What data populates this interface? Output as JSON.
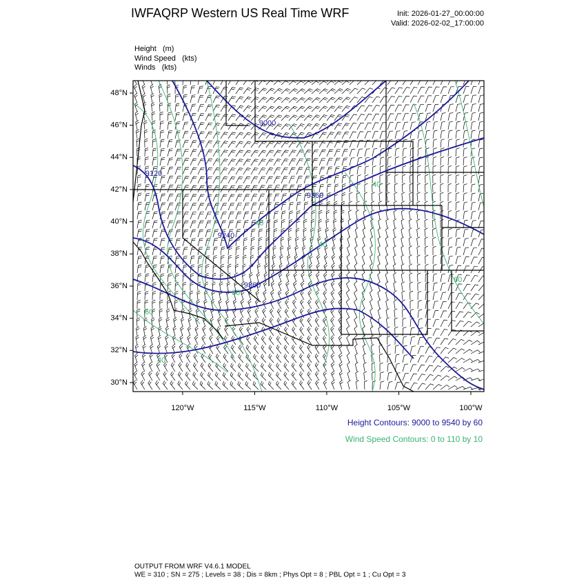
{
  "header": {
    "title": "IWFAQRP Western US Real Time WRF",
    "init": "Init: 2026-01-27_00:00:00",
    "valid": "Valid: 2026-02-02_17:00:00"
  },
  "fields": [
    "Height   (m)",
    "Wind Speed   (kts)",
    "Winds   (kts)"
  ],
  "map": {
    "lonlim": [
      -123.44,
      -99.09
    ],
    "latlim": [
      29.44,
      48.77
    ],
    "lat_ticks": [
      {
        "value": 48,
        "label": "48°N"
      },
      {
        "value": 46,
        "label": "46°N"
      },
      {
        "value": 44,
        "label": "44°N"
      },
      {
        "value": 42,
        "label": "42°N"
      },
      {
        "value": 40,
        "label": "40°N"
      },
      {
        "value": 38,
        "label": "38°N"
      },
      {
        "value": 36,
        "label": "36°N"
      },
      {
        "value": 34,
        "label": "34°N"
      },
      {
        "value": 32,
        "label": "32°N"
      },
      {
        "value": 30,
        "label": "30°N"
      }
    ],
    "lon_ticks": [
      {
        "value": -120,
        "label": "120°W"
      },
      {
        "value": -115,
        "label": "115°W"
      },
      {
        "value": -110,
        "label": "110°W"
      },
      {
        "value": -105,
        "label": "105°W"
      },
      {
        "value": -100,
        "label": "100°W"
      }
    ],
    "height_labels": [
      "9000",
      "9120",
      "9360",
      "9240",
      "9360"
    ],
    "speed_labels": [
      "40",
      "60",
      "40",
      "40",
      "60",
      "40",
      "60"
    ]
  },
  "legend": {
    "height": "Height Contours: 9000 to 9540 by 60",
    "speed": "Wind Speed Contours: 0 to 110 by 10"
  },
  "footer": {
    "line1": "OUTPUT FROM WRF V4.6.1 MODEL",
    "line2": "WE = 310 ; SN = 275 ; Levels = 38 ; Dis = 8km ; Phys Opt = 8 ; PBL Opt = 1 ; Cu Opt = 3"
  }
}
